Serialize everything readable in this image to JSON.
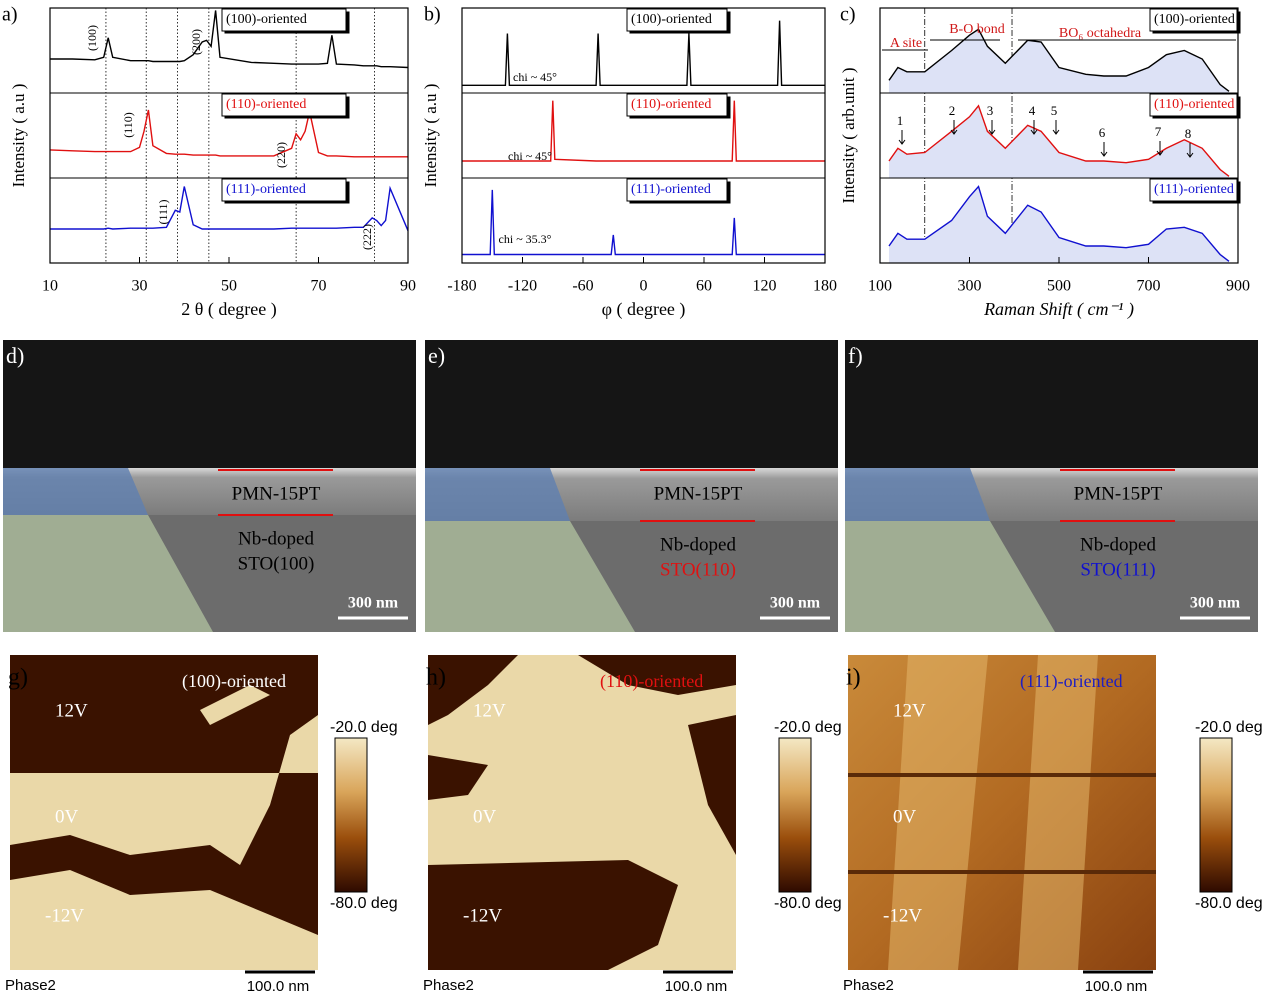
{
  "chart_data": [
    {
      "type": "line",
      "panel_label": "a)",
      "x_label": "2 θ ( degree )",
      "y_label": "Intensity ( a.u )",
      "xlim": [
        10,
        90
      ],
      "xticks": [
        10,
        30,
        50,
        70,
        90
      ],
      "ylim": [
        0,
        3
      ],
      "vlines": [
        22.5,
        31.5,
        38.5,
        45.5,
        65,
        82.5
      ],
      "annotations": [
        "(100)",
        "(200)",
        "(110)",
        "(220)",
        "(111)",
        "(222)"
      ],
      "x": [
        10,
        15,
        20,
        22,
        23,
        24,
        28,
        30,
        31,
        32,
        33,
        36,
        38,
        39,
        40,
        42,
        44,
        45,
        46,
        47,
        48,
        55,
        60,
        64,
        65,
        66,
        67,
        68,
        70,
        72,
        73,
        74,
        78,
        80,
        82,
        83,
        84,
        85,
        86,
        90
      ],
      "series": [
        {
          "name": "(100)-oriented",
          "color": "#000000",
          "values": [
            2.4,
            2.4,
            2.39,
            2.42,
            2.65,
            2.42,
            2.38,
            2.38,
            2.38,
            2.38,
            2.37,
            2.37,
            2.37,
            2.37,
            2.38,
            2.45,
            2.6,
            2.62,
            2.55,
            2.97,
            2.42,
            2.36,
            2.35,
            2.34,
            2.34,
            2.34,
            2.34,
            2.34,
            2.34,
            2.35,
            2.68,
            2.34,
            2.33,
            2.32,
            2.32,
            2.32,
            2.31,
            2.31,
            2.31,
            2.3
          ]
        },
        {
          "name": "(110)-oriented",
          "color": "#e01010",
          "values": [
            1.33,
            1.32,
            1.31,
            1.31,
            1.31,
            1.31,
            1.31,
            1.36,
            1.55,
            1.8,
            1.38,
            1.29,
            1.28,
            1.28,
            1.28,
            1.27,
            1.27,
            1.27,
            1.27,
            1.27,
            1.26,
            1.26,
            1.26,
            1.35,
            1.52,
            1.45,
            1.55,
            1.78,
            1.3,
            1.26,
            1.26,
            1.26,
            1.25,
            1.25,
            1.25,
            1.25,
            1.25,
            1.25,
            1.25,
            1.25
          ]
        },
        {
          "name": "(111)-oriented",
          "color": "#1010d0",
          "values": [
            0.4,
            0.4,
            0.4,
            0.4,
            0.41,
            0.4,
            0.41,
            0.41,
            0.41,
            0.41,
            0.41,
            0.42,
            0.62,
            0.6,
            0.9,
            0.45,
            0.4,
            0.4,
            0.4,
            0.4,
            0.4,
            0.4,
            0.4,
            0.41,
            0.41,
            0.41,
            0.41,
            0.41,
            0.41,
            0.41,
            0.41,
            0.41,
            0.42,
            0.42,
            0.53,
            0.5,
            0.44,
            0.5,
            0.88,
            0.38
          ]
        }
      ]
    },
    {
      "type": "line",
      "panel_label": "b)",
      "x_label": "φ ( degree )",
      "y_label": "Intensity ( a.u )",
      "xlim": [
        -180,
        180
      ],
      "xticks": [
        -180,
        -120,
        -60,
        0,
        60,
        120,
        180
      ],
      "ylim": [
        0,
        3
      ],
      "annotations": [
        "chi ~ 45°",
        "chi ~ 45°",
        "chi ~ 35.3°"
      ],
      "x": [
        -180,
        -152,
        -150,
        -148,
        -137,
        -135,
        -133,
        -92,
        -90,
        -88,
        -47,
        -45,
        -43,
        -32,
        -30,
        -28,
        43,
        45,
        47,
        88,
        90,
        92,
        133,
        135,
        137,
        180
      ],
      "series": [
        {
          "name": "(100)-oriented",
          "color": "#000000",
          "values": [
            2.09,
            2.09,
            2.09,
            2.09,
            2.09,
            2.7,
            2.09,
            2.09,
            2.09,
            2.09,
            2.09,
            2.7,
            2.09,
            2.09,
            2.09,
            2.09,
            2.09,
            2.7,
            2.09,
            2.09,
            2.09,
            2.09,
            2.09,
            2.85,
            2.09,
            2.09
          ]
        },
        {
          "name": "(110)-oriented",
          "color": "#e01010",
          "values": [
            1.2,
            1.2,
            1.2,
            1.2,
            1.2,
            1.2,
            1.2,
            1.2,
            1.91,
            1.22,
            1.2,
            1.2,
            1.2,
            1.2,
            1.2,
            1.2,
            1.2,
            1.2,
            1.2,
            1.2,
            1.91,
            1.2,
            1.2,
            1.2,
            1.2,
            1.2
          ]
        },
        {
          "name": "(111)-oriented",
          "color": "#1010d0",
          "values": [
            0.1,
            0.1,
            0.86,
            0.1,
            0.1,
            0.1,
            0.1,
            0.1,
            0.1,
            0.1,
            0.1,
            0.1,
            0.1,
            0.1,
            0.33,
            0.1,
            0.1,
            0.1,
            0.1,
            0.1,
            0.53,
            0.1,
            0.1,
            0.1,
            0.1,
            0.1
          ]
        }
      ]
    },
    {
      "type": "line",
      "panel_label": "c)",
      "x_label": "Raman Shift ( cm⁻¹ )",
      "y_label": "Intensity ( arb.unit )",
      "xlim": [
        100,
        900
      ],
      "xticks": [
        100,
        300,
        500,
        700,
        900
      ],
      "ylim": [
        0,
        3
      ],
      "vlines": [
        200,
        395
      ],
      "area_fill": "#dde2f6",
      "region_labels": [
        "A site",
        "B-O bond",
        "BO₆ octahedra"
      ],
      "annotations": [
        "1",
        "2",
        "3",
        "4",
        "5",
        "6",
        "7",
        "8"
      ],
      "x": [
        120,
        140,
        160,
        200,
        260,
        300,
        320,
        340,
        380,
        430,
        460,
        500,
        560,
        600,
        650,
        700,
        740,
        780,
        820,
        860,
        880
      ],
      "series": [
        {
          "name": "(100)-oriented",
          "color": "#000000",
          "values": [
            2.15,
            2.3,
            2.25,
            2.25,
            2.5,
            2.68,
            2.75,
            2.55,
            2.35,
            2.62,
            2.6,
            2.3,
            2.22,
            2.2,
            2.2,
            2.3,
            2.45,
            2.5,
            2.4,
            2.1,
            2.02
          ]
        },
        {
          "name": "(110)-oriented",
          "color": "#e01010",
          "values": [
            1.2,
            1.35,
            1.28,
            1.3,
            1.55,
            1.72,
            1.85,
            1.55,
            1.35,
            1.62,
            1.55,
            1.3,
            1.2,
            1.2,
            1.18,
            1.22,
            1.35,
            1.45,
            1.35,
            1.1,
            1.02
          ]
        },
        {
          "name": "(111)-oriented",
          "color": "#1010d0",
          "values": [
            0.2,
            0.35,
            0.28,
            0.28,
            0.5,
            0.78,
            0.9,
            0.55,
            0.35,
            0.68,
            0.6,
            0.3,
            0.2,
            0.2,
            0.18,
            0.22,
            0.4,
            0.42,
            0.35,
            0.1,
            0.02
          ]
        }
      ]
    }
  ],
  "sem_panels": [
    {
      "label": "d)",
      "film": "PMN-15PT",
      "substrate": [
        "Nb-doped",
        "STO(100)"
      ],
      "scale_bar": "300 nm"
    },
    {
      "label": "e)",
      "film": "PMN-15PT",
      "substrate": [
        "Nb-doped",
        "STO(110)"
      ],
      "scale_bar": "300 nm"
    },
    {
      "label": "f)",
      "film": "PMN-15PT",
      "substrate": [
        "Nb-doped",
        "STO(111)"
      ],
      "scale_bar": "300 nm"
    }
  ],
  "pfm_panels": [
    {
      "label": "g)",
      "title": "(100)-oriented",
      "voltages": [
        "12V",
        "0V",
        "-12V"
      ],
      "colorbar": [
        "-20.0 deg",
        "-80.0 deg"
      ],
      "channel": "Phase2",
      "scale_bar": "100.0 nm"
    },
    {
      "label": "h)",
      "title": "(110)-oriented",
      "voltages": [
        "12V",
        "0V",
        "-12V"
      ],
      "colorbar": [
        "-20.0 deg",
        "-80.0 deg"
      ],
      "channel": "Phase2",
      "scale_bar": "100.0 nm"
    },
    {
      "label": "i)",
      "title": "(111)-oriented",
      "voltages": [
        "12V",
        "0V",
        "-12V"
      ],
      "colorbar": [
        "-20.0 deg",
        "-80.0 deg"
      ],
      "channel": "Phase2",
      "scale_bar": "100.0 nm"
    }
  ]
}
